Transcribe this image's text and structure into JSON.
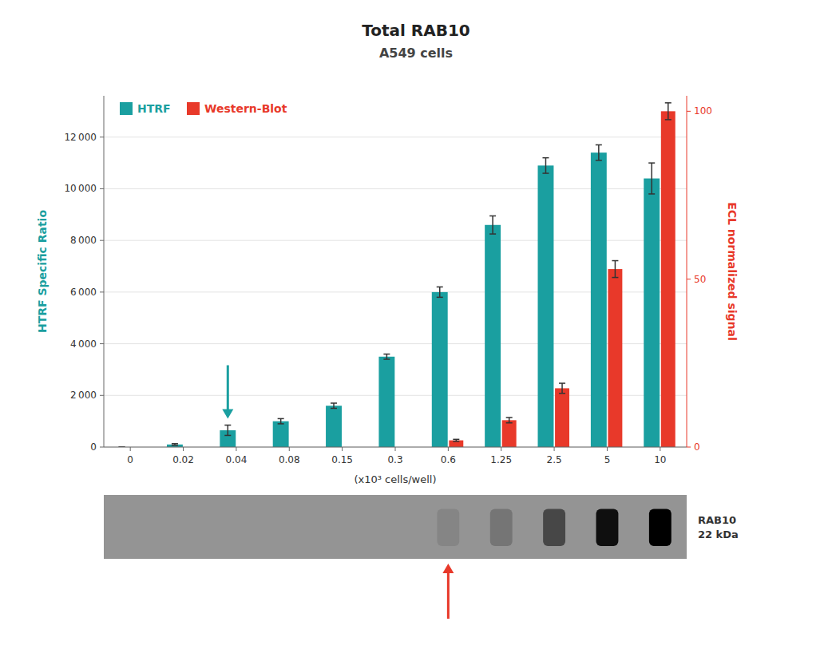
{
  "chart_data": {
    "type": "bar",
    "title": "Total RAB10",
    "subtitle": "A549 cells",
    "categories": [
      "0",
      "0.02",
      "0.04",
      "0.08",
      "0.15",
      "0.3",
      "0.6",
      "1.25",
      "2.5",
      "5",
      "10"
    ],
    "xlabel": "(x10³ cells/well)",
    "ylabel": "HTRF Specific Ratio",
    "y2label": "ECL normalized signal",
    "series": [
      {
        "name": "HTRF",
        "color": "#1a9fa0",
        "values": [
          0,
          100,
          650,
          1000,
          1600,
          3500,
          6000,
          8600,
          10900,
          11400,
          10400
        ],
        "errors": [
          0,
          30,
          200,
          100,
          100,
          100,
          200,
          350,
          300,
          300,
          600
        ]
      },
      {
        "name": "Western-Blot",
        "color": "#e8392a",
        "axis": "y2",
        "values": [
          null,
          null,
          null,
          null,
          null,
          null,
          2.0,
          8.0,
          17.5,
          53.0,
          100.0
        ],
        "errors": [
          null,
          null,
          null,
          null,
          null,
          null,
          0.3,
          0.8,
          1.5,
          2.5,
          2.5
        ]
      }
    ],
    "ylim": [
      0,
      13600
    ],
    "yticks": [
      0,
      {
        "value": 2000,
        "label": "2 000"
      },
      {
        "value": 4000,
        "label": "4 000"
      },
      {
        "value": 6000,
        "label": "6 000"
      },
      {
        "value": 8000,
        "label": "8 000"
      },
      {
        "value": 10000,
        "label": "10 000"
      },
      {
        "value": 12000,
        "label": "12 000"
      }
    ],
    "y2lim": [
      0,
      104.6
    ],
    "y2ticks": [
      0,
      50,
      100
    ],
    "grid": true,
    "legend": "upper left",
    "annotations": [
      {
        "type": "arrow",
        "category": "0.04",
        "direction": "down",
        "color": "#1a9fa0"
      },
      {
        "type": "arrow",
        "category": "0.6",
        "direction": "up",
        "color": "#e8392a"
      }
    ],
    "blot": {
      "label": "RAB10",
      "sublabel": "22 kDa",
      "intensities": [
        0.06,
        0.12,
        0.3,
        0.52,
        0.72
      ]
    }
  }
}
